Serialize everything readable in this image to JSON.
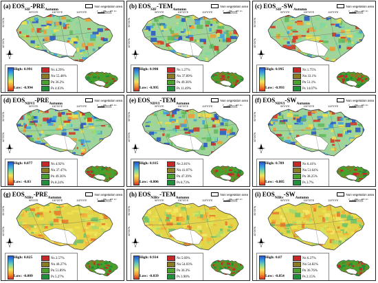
{
  "non_veg_label": "Non vegetation area",
  "longitudes": [
    "90°0'0\"E",
    "100°0'0\"E",
    "110°0'0\"E",
    "120°0'0\"E"
  ],
  "latitudes": [
    "50°0'0\"N",
    "40°0'0\"N"
  ],
  "scale_labels": [
    "0",
    "200",
    "400",
    "km"
  ],
  "colors": {
    "Ns": "#c62828",
    "Nn": "#8a7a22",
    "Pn": "#4aa02c",
    "Ps": "#1f8f3a",
    "outline": "#333333"
  },
  "panels": [
    {
      "id": "a",
      "letter": "(a)",
      "prefix": "EOS",
      "sub1": "SIF",
      "var": "-PRE",
      "sub2": "Autumn",
      "high": "High: 0.991",
      "low": "Low: -0.994",
      "Ns": "Ns 4.29%",
      "Nn": "Nn 55.48%",
      "Pn": "Pn 36.2%",
      "Ps": "Ps 4.03%",
      "palette": "mix"
    },
    {
      "id": "b",
      "letter": "(b)",
      "prefix": "EOS",
      "sub1": "SIF",
      "var": "-TEM",
      "sub2": "Autumn",
      "high": "High: 0.998",
      "low": "Low: -0.995",
      "Ns": "Ns 1.27%",
      "Nn": "Nn 37.89%",
      "Pn": "Pn 49.36%",
      "Ps": "Ps 11.49%",
      "palette": "mix"
    },
    {
      "id": "c",
      "letter": "(c)",
      "prefix": "EOS",
      "sub1": "SIF",
      "var": "-SW",
      "sub2": "Autumn",
      "high": "High: 0.995",
      "low": "Low: -0.993",
      "Ns": "Ns 1.75%",
      "Nn": "Nn 33.1%",
      "Pn": "Pn 51.1%",
      "Ps": "Ps 14.07%",
      "palette": "mix"
    },
    {
      "id": "d",
      "letter": "(d)",
      "prefix": "EOS",
      "sub1": "NDVI",
      "var": "-PRE",
      "sub2": "Autumn",
      "high": "High: 0.877",
      "low": "Low: -0.83",
      "Ns": "Ns 4.92%",
      "Nn": "Nn 37.47%",
      "Pn": "Pn 49.36%",
      "Ps": "Ps 8.24%",
      "palette": "mix"
    },
    {
      "id": "e",
      "letter": "(e)",
      "prefix": "EOS",
      "sub1": "NDVI",
      "var": "-TEM",
      "sub2": "Autumn",
      "high": "High: 0.935",
      "low": "Low: -0.806",
      "Ns": "Ns 2.81%",
      "Nn": "Nn 41.07%",
      "Pn": "Pn 47.39%",
      "Ps": "Ps 8.73%",
      "palette": "mix"
    },
    {
      "id": "f",
      "letter": "(f)",
      "prefix": "EOS",
      "sub1": "NDVI",
      "var": "-SW",
      "sub2": "Autumn",
      "high": "High: 0.789",
      "low": "Low: -0.885",
      "Ns": "Ns 6.41%",
      "Nn": "Nn 51.64%",
      "Pn": "Pn 38.25%",
      "Ps": "Ps 3.7%",
      "palette": "mix"
    },
    {
      "id": "g",
      "letter": "(g)",
      "prefix": "EOS",
      "sub1": "NIRv",
      "var": "-PRE",
      "sub2": "Autumn",
      "high": "High: 0.825",
      "low": "Low: -0.809",
      "Ns": "Ns 2.57%",
      "Nn": "Nn 40.27%",
      "Pn": "Pn 51.89%",
      "Ps": "Ps 5.27%",
      "palette": "warm"
    },
    {
      "id": "h",
      "letter": "(h)",
      "prefix": "EOS",
      "sub1": "NIRv",
      "var": "-TEM",
      "sub2": "Autumn",
      "high": "High: 0.934",
      "low": "Low: -0.839",
      "Ns": "Ns 5.69%",
      "Nn": "Nn 54.03%",
      "Pn": "Pn 36.3%",
      "Ps": "Ps 3.98%",
      "palette": "warm"
    },
    {
      "id": "i",
      "letter": "(i)",
      "prefix": "EOS",
      "sub1": "NIRv",
      "var": "-SW",
      "sub2": "Autumn",
      "high": "High: 0.87",
      "low": "Low: -0.854",
      "Ns": "Ns 6.27%",
      "Nn": "Nn 54.82%",
      "Pn": "Pn 36.76%",
      "Ps": "Ps 2.15%",
      "palette": "warm"
    }
  ]
}
